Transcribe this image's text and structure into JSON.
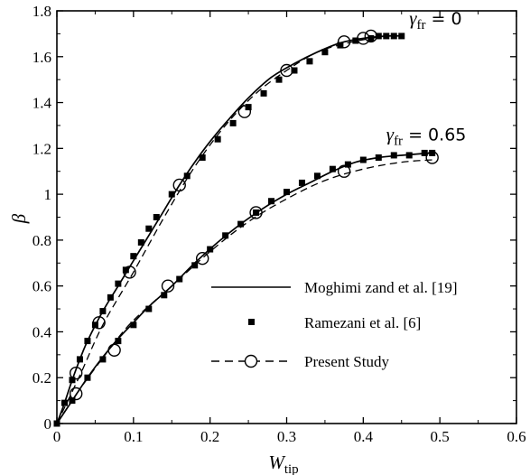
{
  "chart_data": {
    "type": "line",
    "xlabel": "W",
    "xlabel_sub": "tip",
    "ylabel": "β",
    "xlim": [
      0,
      0.6
    ],
    "ylim": [
      0,
      1.8
    ],
    "x_ticks": [
      0,
      0.1,
      0.2,
      0.3,
      0.4,
      0.5,
      0.6
    ],
    "x_tick_labels": [
      "0",
      "0.1",
      "0.2",
      "0.3",
      "0.4",
      "0.5",
      "0.6"
    ],
    "y_ticks": [
      0,
      0.2,
      0.4,
      0.6,
      0.8,
      1.0,
      1.2,
      1.4,
      1.6,
      1.8
    ],
    "y_tick_labels": [
      "0",
      "0.2",
      "0.4",
      "0.6",
      "0.8",
      "1",
      "1.2",
      "1.4",
      "1.6",
      "1.8"
    ],
    "grid": false,
    "legend_position": "lower-right",
    "series": [
      {
        "name": "Moghimi zand et al. [19]",
        "style": "solid-line",
        "curves": [
          {
            "x": [
              0,
              0.01,
              0.02,
              0.03,
              0.04,
              0.06,
              0.08,
              0.1,
              0.12,
              0.14,
              0.16,
              0.18,
              0.2,
              0.22,
              0.25,
              0.28,
              0.31,
              0.34,
              0.37,
              0.4,
              0.43,
              0.45
            ],
            "y": [
              0,
              0.09,
              0.19,
              0.28,
              0.36,
              0.49,
              0.6,
              0.71,
              0.82,
              0.93,
              1.04,
              1.14,
              1.23,
              1.31,
              1.42,
              1.51,
              1.57,
              1.62,
              1.66,
              1.68,
              1.69,
              1.69
            ]
          },
          {
            "x": [
              0,
              0.02,
              0.04,
              0.06,
              0.08,
              0.1,
              0.12,
              0.15,
              0.18,
              0.21,
              0.24,
              0.27,
              0.3,
              0.33,
              0.36,
              0.39,
              0.42,
              0.45,
              0.49
            ],
            "y": [
              0,
              0.1,
              0.2,
              0.29,
              0.37,
              0.44,
              0.51,
              0.6,
              0.7,
              0.79,
              0.87,
              0.94,
              1.0,
              1.05,
              1.1,
              1.14,
              1.16,
              1.17,
              1.18
            ]
          }
        ]
      },
      {
        "name": "Ramezani et al. [6]",
        "style": "square-markers",
        "curves": [
          {
            "x": [
              0,
              0.01,
              0.02,
              0.03,
              0.04,
              0.05,
              0.06,
              0.07,
              0.08,
              0.09,
              0.1,
              0.11,
              0.12,
              0.13,
              0.15,
              0.17,
              0.19,
              0.21,
              0.23,
              0.25,
              0.27,
              0.29,
              0.31,
              0.33,
              0.35,
              0.37,
              0.39,
              0.41,
              0.42,
              0.43,
              0.44,
              0.45
            ],
            "y": [
              0,
              0.09,
              0.19,
              0.28,
              0.36,
              0.43,
              0.49,
              0.55,
              0.61,
              0.67,
              0.73,
              0.79,
              0.85,
              0.9,
              1.0,
              1.08,
              1.16,
              1.24,
              1.31,
              1.38,
              1.44,
              1.5,
              1.54,
              1.58,
              1.62,
              1.65,
              1.67,
              1.68,
              1.69,
              1.69,
              1.69,
              1.69
            ]
          },
          {
            "x": [
              0,
              0.02,
              0.04,
              0.06,
              0.08,
              0.1,
              0.12,
              0.14,
              0.16,
              0.18,
              0.2,
              0.22,
              0.24,
              0.26,
              0.28,
              0.3,
              0.32,
              0.34,
              0.36,
              0.38,
              0.4,
              0.42,
              0.44,
              0.46,
              0.48,
              0.49
            ],
            "y": [
              0,
              0.1,
              0.2,
              0.28,
              0.36,
              0.43,
              0.5,
              0.56,
              0.63,
              0.69,
              0.76,
              0.82,
              0.87,
              0.92,
              0.97,
              1.01,
              1.05,
              1.08,
              1.11,
              1.13,
              1.15,
              1.16,
              1.17,
              1.17,
              1.18,
              1.18
            ]
          }
        ]
      },
      {
        "name": "Present Study",
        "style": "dashed-line-circle-markers",
        "curves": [
          {
            "x": [
              0,
              0.03,
              0.06,
              0.1,
              0.14,
              0.18,
              0.22,
              0.26,
              0.3,
              0.34,
              0.38,
              0.41,
              0.43,
              0.45
            ],
            "y": [
              0,
              0.21,
              0.43,
              0.66,
              0.9,
              1.12,
              1.3,
              1.44,
              1.54,
              1.62,
              1.66,
              1.68,
              1.69,
              1.69
            ],
            "markers": [
              [
                0.025,
                0.22
              ],
              [
                0.055,
                0.44
              ],
              [
                0.095,
                0.66
              ],
              [
                0.16,
                1.04
              ],
              [
                0.245,
                1.36
              ],
              [
                0.3,
                1.54
              ],
              [
                0.375,
                1.665
              ],
              [
                0.4,
                1.68
              ],
              [
                0.41,
                1.69
              ]
            ]
          },
          {
            "x": [
              0,
              0.03,
              0.07,
              0.1,
              0.15,
              0.2,
              0.25,
              0.3,
              0.35,
              0.4,
              0.45,
              0.49
            ],
            "y": [
              0,
              0.15,
              0.33,
              0.45,
              0.6,
              0.75,
              0.88,
              0.98,
              1.06,
              1.11,
              1.14,
              1.15
            ],
            "markers": [
              [
                0.025,
                0.13
              ],
              [
                0.075,
                0.32
              ],
              [
                0.145,
                0.6
              ],
              [
                0.19,
                0.72
              ],
              [
                0.26,
                0.92
              ],
              [
                0.375,
                1.1
              ],
              [
                0.49,
                1.16
              ]
            ]
          }
        ]
      }
    ],
    "annotations": [
      {
        "symbol": "γ",
        "sub": "fr",
        "text": " = 0",
        "at": [
          0.46,
          1.74
        ]
      },
      {
        "symbol": "γ",
        "sub": "fr",
        "text": " = 0.65",
        "at": [
          0.43,
          1.235
        ]
      }
    ]
  }
}
